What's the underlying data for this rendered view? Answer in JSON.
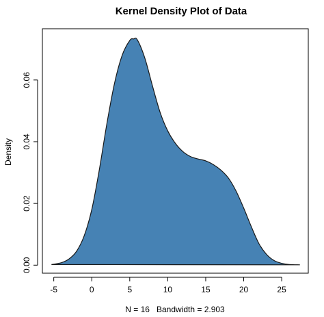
{
  "chart_data": {
    "type": "area",
    "title": "Kernel Density Plot of Data",
    "xlabel": "N = 16   Bandwidth = 2.903",
    "ylabel": "Density",
    "xlim": [
      -6.5,
      28.5
    ],
    "ylim": [
      -0.0026,
      0.0766
    ],
    "x_ticks": [
      -5,
      0,
      5,
      10,
      15,
      20,
      25
    ],
    "x_tick_labels": [
      "-5",
      "0",
      "5",
      "10",
      "15",
      "20",
      "25"
    ],
    "y_ticks": [
      0.0,
      0.02,
      0.04,
      0.06
    ],
    "y_tick_labels": [
      "0.00",
      "0.02",
      "0.04",
      "0.06"
    ],
    "grid": false,
    "fill_color": "#4682B4",
    "line_color": "#1a1a1a",
    "series": [
      {
        "x": [
          -5.3,
          -4,
          -3,
          -2,
          -1,
          0,
          1,
          2,
          3,
          4,
          5,
          5.5,
          6,
          7,
          8,
          9,
          10,
          11,
          12,
          13,
          14,
          15,
          16,
          17,
          18,
          19,
          20,
          21,
          22,
          23,
          24,
          25,
          26,
          27.4
        ],
        "y": [
          0.0002,
          0.0008,
          0.002,
          0.0045,
          0.0095,
          0.018,
          0.031,
          0.046,
          0.059,
          0.068,
          0.0728,
          0.0733,
          0.073,
          0.067,
          0.058,
          0.0495,
          0.0435,
          0.0395,
          0.0368,
          0.0352,
          0.0344,
          0.0338,
          0.0326,
          0.0308,
          0.0282,
          0.024,
          0.0185,
          0.0125,
          0.007,
          0.0035,
          0.0015,
          0.0006,
          0.0002,
          0.0001
        ]
      }
    ]
  }
}
